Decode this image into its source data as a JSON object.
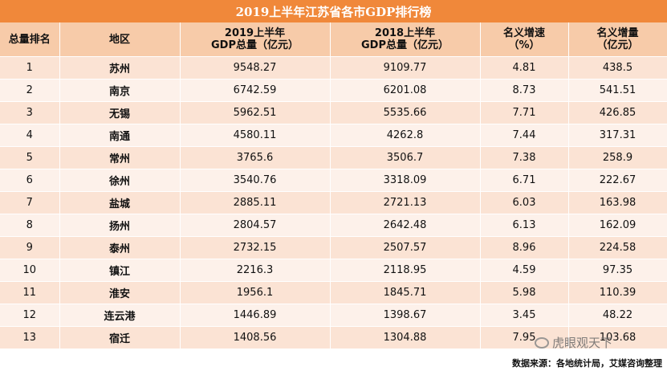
{
  "title": "2019上半年江苏省各市GDP排行榜",
  "headers": {
    "rank": "总量排名",
    "region": "地区",
    "gdp2019_line1": "2019上半年",
    "gdp2019_line2": "GDP总量（亿元）",
    "gdp2018_line1": "2018上半年",
    "gdp2018_line2": "GDP总量（亿元）",
    "growth_line1": "名义增速",
    "growth_line2": "（%）",
    "increase_line1": "名义增量",
    "increase_line2": "（亿元）"
  },
  "rows": [
    {
      "rank": "1",
      "city": "苏州",
      "gdp2019": "9548.27",
      "gdp2018": "9109.77",
      "growth": "4.81",
      "increase": "438.5"
    },
    {
      "rank": "2",
      "city": "南京",
      "gdp2019": "6742.59",
      "gdp2018": "6201.08",
      "growth": "8.73",
      "increase": "541.51"
    },
    {
      "rank": "3",
      "city": "无锡",
      "gdp2019": "5962.51",
      "gdp2018": "5535.66",
      "growth": "7.71",
      "increase": "426.85"
    },
    {
      "rank": "4",
      "city": "南通",
      "gdp2019": "4580.11",
      "gdp2018": "4262.8",
      "growth": "7.44",
      "increase": "317.31"
    },
    {
      "rank": "5",
      "city": "常州",
      "gdp2019": "3765.6",
      "gdp2018": "3506.7",
      "growth": "7.38",
      "increase": "258.9"
    },
    {
      "rank": "6",
      "city": "徐州",
      "gdp2019": "3540.76",
      "gdp2018": "3318.09",
      "growth": "6.71",
      "increase": "222.67"
    },
    {
      "rank": "7",
      "city": "盐城",
      "gdp2019": "2885.11",
      "gdp2018": "2721.13",
      "growth": "6.03",
      "increase": "163.98"
    },
    {
      "rank": "8",
      "city": "扬州",
      "gdp2019": "2804.57",
      "gdp2018": "2642.48",
      "growth": "6.13",
      "increase": "162.09"
    },
    {
      "rank": "9",
      "city": "泰州",
      "gdp2019": "2732.15",
      "gdp2018": "2507.57",
      "growth": "8.96",
      "increase": "224.58"
    },
    {
      "rank": "10",
      "city": "镇江",
      "gdp2019": "2216.3",
      "gdp2018": "2118.95",
      "growth": "4.59",
      "increase": "97.35"
    },
    {
      "rank": "11",
      "city": "淮安",
      "gdp2019": "1956.1",
      "gdp2018": "1845.71",
      "growth": "5.98",
      "increase": "110.39"
    },
    {
      "rank": "12",
      "city": "连云港",
      "gdp2019": "1446.89",
      "gdp2018": "1398.67",
      "growth": "3.45",
      "increase": "48.22"
    },
    {
      "rank": "13",
      "city": "宿迁",
      "gdp2019": "1408.56",
      "gdp2018": "1304.88",
      "growth": "7.95",
      "increase": "103.68"
    }
  ],
  "watermark": "虎眼观天下",
  "source": "数据来源：各地统计局，艾媒咨询整理",
  "colors": {
    "title_bg": "#f0883a",
    "header_bg": "#f7cba9",
    "row_odd": "#fbe3d4",
    "row_even": "#fdf1ea"
  }
}
